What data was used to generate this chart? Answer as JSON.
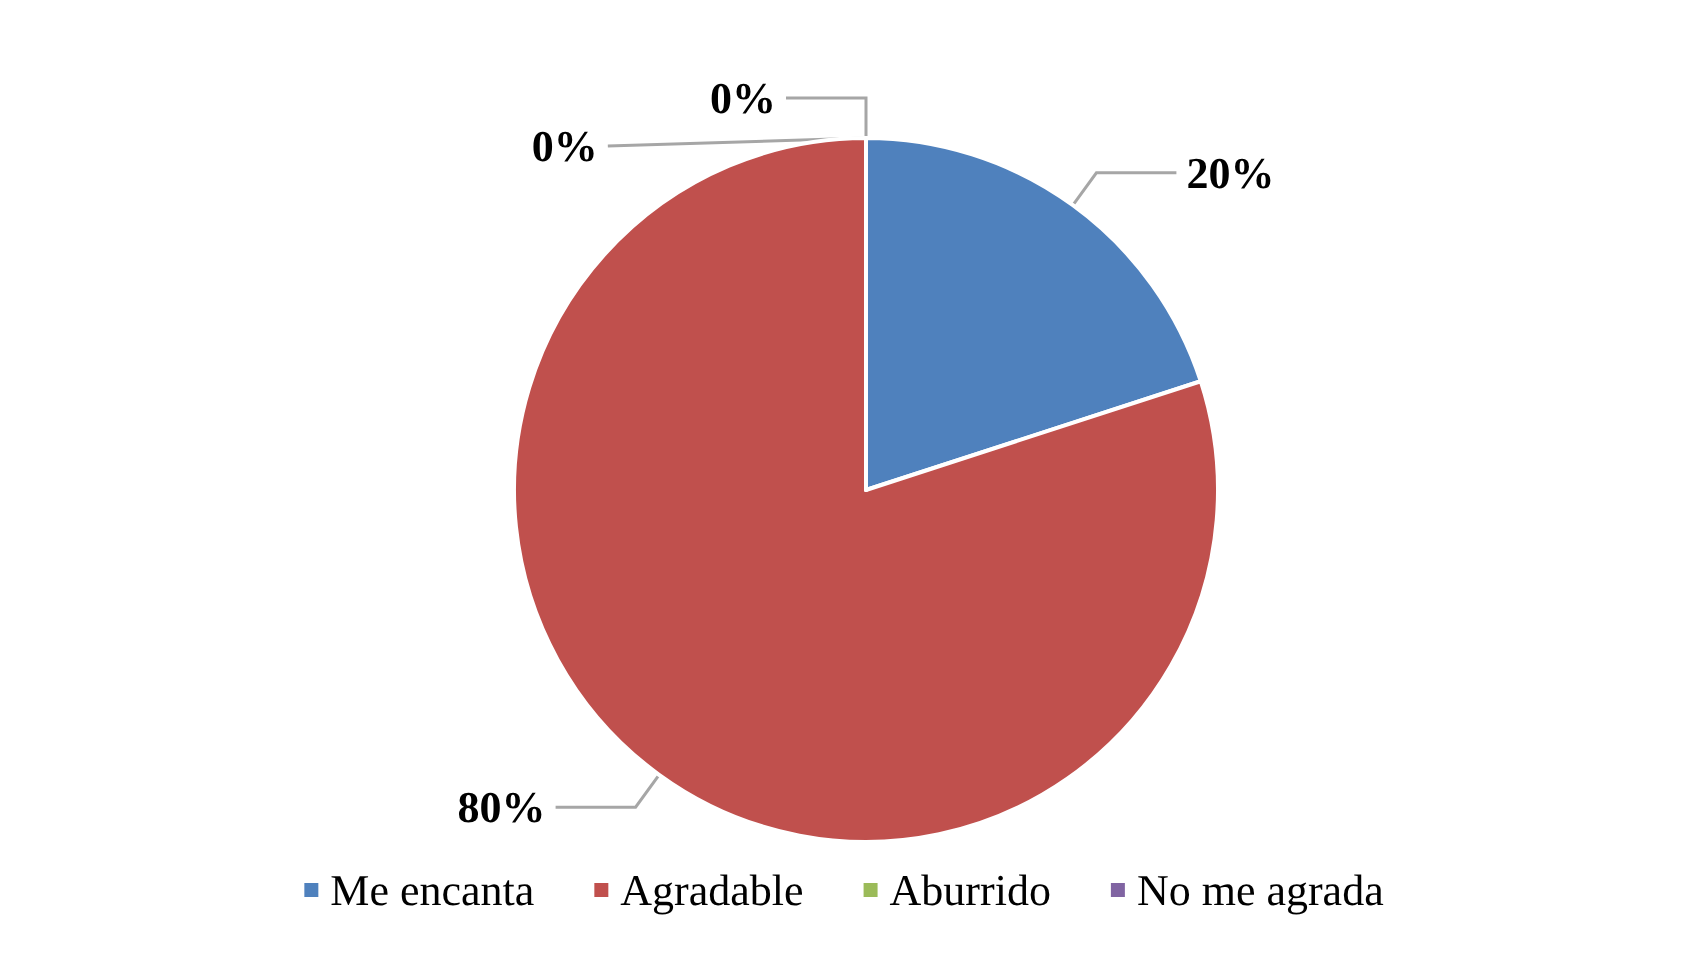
{
  "chart_data": {
    "type": "pie",
    "categories": [
      "Me encanta",
      "Agradable",
      "Aburrido",
      "No me agrada"
    ],
    "values": [
      20,
      80,
      0,
      0
    ],
    "colors": [
      "#4f81bd",
      "#c0504d",
      "#9bbb59",
      "#8064a2"
    ],
    "value_labels": [
      "20%",
      "80%",
      "0%",
      "0%"
    ],
    "legend": "bottom"
  }
}
